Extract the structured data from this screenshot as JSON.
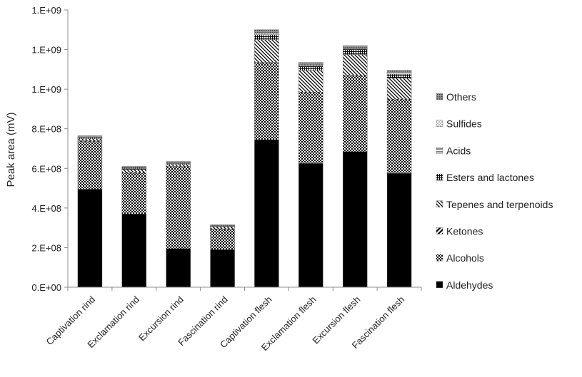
{
  "chart_data": {
    "type": "bar",
    "stacked": true,
    "ylabel": "Peak area (mV)",
    "ylim": [
      0,
      1400000000
    ],
    "yticks": [
      {
        "value": 0,
        "label": "0.E+00"
      },
      {
        "value": 200000000,
        "label": "2.E+08"
      },
      {
        "value": 400000000,
        "label": "4.E+08"
      },
      {
        "value": 600000000,
        "label": "6.E+08"
      },
      {
        "value": 800000000,
        "label": "8.E+08"
      },
      {
        "value": 1000000000,
        "label": "1.E+09"
      },
      {
        "value": 1200000000,
        "label": "1.E+09"
      },
      {
        "value": 1400000000,
        "label": "1.E+09"
      }
    ],
    "categories": [
      "Captivation rind",
      "Exclamation rind",
      "Excursion rind",
      "Fascination rind",
      "Captivation flesh",
      "Exclamation flesh",
      "Excursion flesh",
      "Fascination flesh"
    ],
    "series": [
      {
        "name": "Aldehydes",
        "pattern": "solid",
        "values": [
          495000000,
          370000000,
          195000000,
          190000000,
          745000000,
          625000000,
          685000000,
          575000000
        ]
      },
      {
        "name": "Alcohols",
        "pattern": "checker",
        "values": [
          240000000,
          205000000,
          410000000,
          100000000,
          385000000,
          355000000,
          380000000,
          370000000
        ]
      },
      {
        "name": "Ketones",
        "pattern": "diagonal-bold",
        "values": [
          5000000,
          5000000,
          5000000,
          5000000,
          5000000,
          5000000,
          5000000,
          5000000
        ]
      },
      {
        "name": "Tepenes and terpenoids",
        "pattern": "diagonal-fine",
        "values": [
          10000000,
          15000000,
          10000000,
          10000000,
          115000000,
          110000000,
          105000000,
          105000000
        ]
      },
      {
        "name": "Esters and lactones",
        "pattern": "grid",
        "values": [
          5000000,
          5000000,
          5000000,
          3000000,
          25000000,
          20000000,
          25000000,
          20000000
        ]
      },
      {
        "name": "Acids",
        "pattern": "horizontal",
        "values": [
          1000000,
          1000000,
          1000000,
          1000000,
          5000000,
          5000000,
          5000000,
          5000000
        ]
      },
      {
        "name": "Sulfides",
        "pattern": "dots",
        "values": [
          1000000,
          1000000,
          1000000,
          1000000,
          5000000,
          5000000,
          5000000,
          5000000
        ]
      },
      {
        "name": "Others",
        "pattern": "dense",
        "values": [
          8000000,
          8000000,
          8000000,
          5000000,
          15000000,
          10000000,
          10000000,
          10000000
        ]
      }
    ],
    "legend_order": [
      "Others",
      "Sulfides",
      "Acids",
      "Esters and lactones",
      "Tepenes and terpenoids",
      "Ketones",
      "Alcohols",
      "Aldehydes"
    ],
    "legend_position": "right",
    "grid": false,
    "colors": {
      "ink": "#000000",
      "axis": "#8c8c8c",
      "text": "#222222"
    }
  }
}
